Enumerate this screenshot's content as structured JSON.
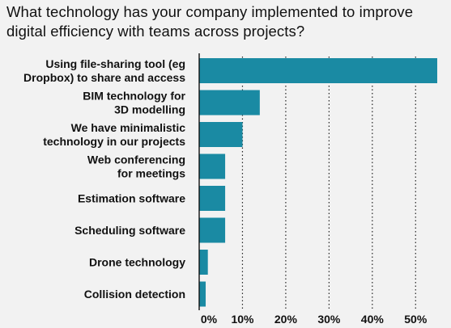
{
  "chart_data": {
    "type": "bar",
    "orientation": "horizontal",
    "title": "What technology has your company implemented to improve digital efficiency with teams across projects?",
    "categories": [
      [
        "Using file-sharing tool (eg",
        "Dropbox) to share and access"
      ],
      [
        "BIM technology for",
        "3D modelling"
      ],
      [
        "We have minimalistic",
        "technology in our projects"
      ],
      [
        "Web conferencing",
        "for meetings"
      ],
      [
        "Estimation software"
      ],
      [
        "Scheduling software"
      ],
      [
        "Drone technology"
      ],
      [
        "Collision detection"
      ]
    ],
    "values": [
      55,
      14,
      10,
      6,
      6,
      6,
      2,
      1.5
    ],
    "xlim": [
      0,
      55
    ],
    "xticks": [
      0,
      10,
      20,
      30,
      40,
      50
    ],
    "xtick_labels": [
      "0%",
      "10%",
      "20%",
      "30%",
      "40%",
      "50%"
    ],
    "grid": "vertical dotted",
    "colors": {
      "bar": "#1a8aa3",
      "background": "#f2f2f2",
      "text": "#111111",
      "grid": "#222222"
    }
  }
}
